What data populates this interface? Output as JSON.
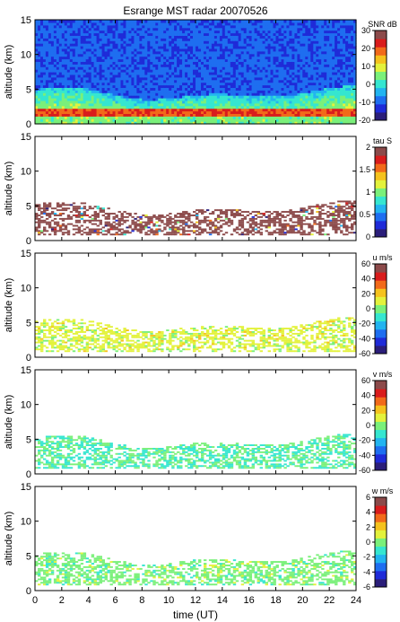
{
  "figure": {
    "title": "Esrange MST radar 20070526",
    "xlabel": "time (UT)",
    "xticks": [
      "0",
      "2",
      "4",
      "6",
      "8",
      "10",
      "12",
      "14",
      "16",
      "18",
      "20",
      "22",
      "24"
    ],
    "xlim": [
      0,
      24
    ]
  },
  "colorscale": [
    "#2b1e7a",
    "#1f2bd8",
    "#1e6ef0",
    "#22b4f0",
    "#35e6d0",
    "#7af07a",
    "#e3f23c",
    "#f5c21d",
    "#f26a1a",
    "#d91c1c",
    "#8c4a4a"
  ],
  "chart_data": [
    {
      "type": "heatmap",
      "title": "Esrange MST radar 20070526",
      "xlabel": "",
      "ylabel": "altitude (km)",
      "xlim": [
        0,
        24
      ],
      "ylim": [
        0,
        15
      ],
      "yticks": [
        "0",
        "5",
        "10",
        "15"
      ],
      "colorbar": {
        "label": "SNR dB",
        "range": [
          -20,
          30
        ],
        "ticks": [
          "30",
          "20",
          "10",
          "0",
          "-10",
          "-20"
        ]
      },
      "features": {
        "background_level_db": -10,
        "strong_layer": {
          "altitude_km": [
            1.0,
            2.0
          ],
          "level_db": 25
        },
        "enhanced_echo_top_km": [
          6,
          4.5,
          5,
          4,
          4.5,
          4,
          4.5,
          4,
          4.5,
          4,
          4.5,
          4.2,
          4.8
        ]
      }
    },
    {
      "type": "heatmap",
      "title": "",
      "xlabel": "",
      "ylabel": "altitude (km)",
      "xlim": [
        0,
        24
      ],
      "ylim": [
        0,
        15
      ],
      "yticks": [
        "0",
        "5",
        "10",
        "15"
      ],
      "colorbar": {
        "label": "tau S",
        "range": [
          0,
          2
        ],
        "ticks": [
          "2",
          "1.5",
          "1",
          "0.5",
          "0"
        ]
      },
      "features": {
        "dominant_value": 2.0,
        "echo_altitude_km": [
          1,
          6
        ]
      }
    },
    {
      "type": "heatmap",
      "title": "",
      "xlabel": "",
      "ylabel": "altitude (km)",
      "xlim": [
        0,
        24
      ],
      "ylim": [
        0,
        15
      ],
      "yticks": [
        "0",
        "5",
        "10",
        "15"
      ],
      "colorbar": {
        "label": "u m/s",
        "range": [
          -60,
          60
        ],
        "ticks": [
          "60",
          "40",
          "20",
          "0",
          "-20",
          "-40",
          "-60"
        ]
      },
      "features": {
        "typical_value_ms": 10,
        "echo_altitude_km": [
          1,
          6
        ]
      }
    },
    {
      "type": "heatmap",
      "title": "",
      "xlabel": "",
      "ylabel": "altitude (km)",
      "xlim": [
        0,
        24
      ],
      "ylim": [
        0,
        15
      ],
      "yticks": [
        "0",
        "5",
        "10",
        "15"
      ],
      "colorbar": {
        "label": "v m/s",
        "range": [
          -60,
          60
        ],
        "ticks": [
          "60",
          "40",
          "20",
          "0",
          "-20",
          "-40",
          "-60"
        ]
      },
      "features": {
        "typical_value_ms": -5,
        "echo_altitude_km": [
          1,
          6
        ]
      }
    },
    {
      "type": "heatmap",
      "title": "",
      "xlabel": "time (UT)",
      "ylabel": "altitude (km)",
      "xlim": [
        0,
        24
      ],
      "ylim": [
        0,
        15
      ],
      "yticks": [
        "0",
        "5",
        "10",
        "15"
      ],
      "colorbar": {
        "label": "w m/s",
        "range": [
          -6,
          6
        ],
        "ticks": [
          "6",
          "4",
          "2",
          "0",
          "-2",
          "-4",
          "-6"
        ]
      },
      "features": {
        "typical_value_ms": 0,
        "echo_altitude_km": [
          1,
          6
        ]
      }
    }
  ]
}
